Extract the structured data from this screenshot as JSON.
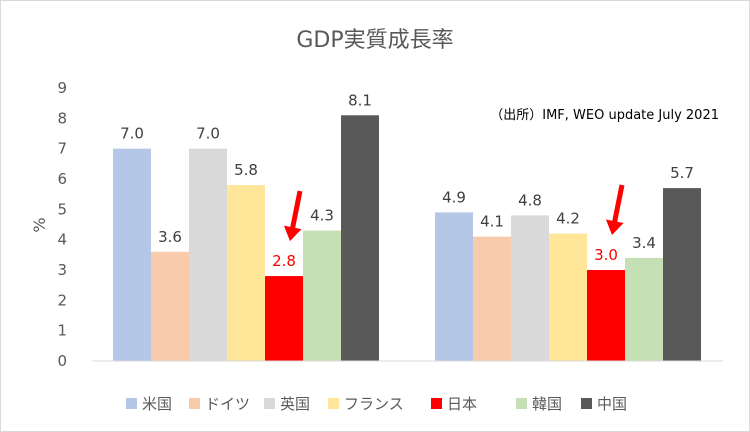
{
  "chart_data": {
    "type": "bar",
    "title": "GDP実質成長率",
    "ylabel": "%",
    "xlabel": "",
    "ylim": [
      0,
      9
    ],
    "yticks": [
      "0",
      "1",
      "2",
      "3",
      "4",
      "5",
      "6",
      "7",
      "8",
      "9"
    ],
    "grid": false,
    "legend_position": "bottom",
    "source_note": "（出所）IMF, WEO update July 2021",
    "groups": [
      "",
      ""
    ],
    "series": [
      {
        "name": "米国",
        "color": "#b4c7e7",
        "values": [
          7.0,
          4.9
        ],
        "labels": [
          "7.0",
          "4.9"
        ]
      },
      {
        "name": "ドイツ",
        "color": "#f8cbad",
        "values": [
          3.6,
          4.1
        ],
        "labels": [
          "3.6",
          "4.1"
        ]
      },
      {
        "name": "英国",
        "color": "#d9d9d9",
        "values": [
          7.0,
          4.8
        ],
        "labels": [
          "7.0",
          "4.8"
        ]
      },
      {
        "name": "フランス",
        "color": "#ffe699",
        "values": [
          5.8,
          4.2
        ],
        "labels": [
          "5.8",
          "4.2"
        ]
      },
      {
        "name": "日本",
        "color": "#ff0000",
        "values": [
          2.8,
          3.0
        ],
        "labels": [
          "2.8",
          "3.0"
        ],
        "highlight": true
      },
      {
        "name": "韓国",
        "color": "#c5e0b4",
        "values": [
          4.3,
          3.4
        ],
        "labels": [
          "4.3",
          "3.4"
        ]
      },
      {
        "name": "中国",
        "color": "#595959",
        "values": [
          8.1,
          5.7
        ],
        "labels": [
          "8.1",
          "5.7"
        ]
      }
    ],
    "annotations": [
      {
        "type": "arrow",
        "points_to": "日本",
        "group": 0,
        "color": "#ff0000"
      },
      {
        "type": "arrow",
        "points_to": "日本",
        "group": 1,
        "color": "#ff0000"
      }
    ]
  }
}
